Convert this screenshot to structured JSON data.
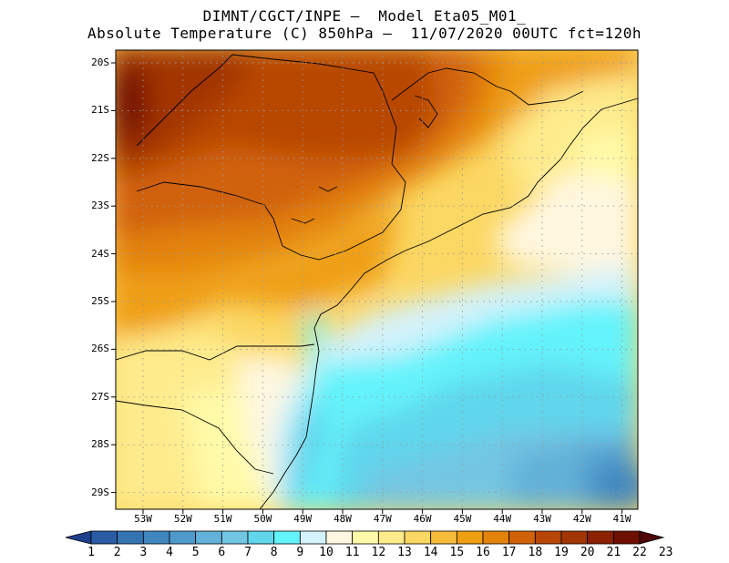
{
  "title": {
    "line1": "DIMNT/CGCT/INPE –  Model Eta05_M01_",
    "line2": "Absolute Temperature (C) 850hPa –  11/07/2020 00UTC fct=120h"
  },
  "axes": {
    "lat_labels": [
      "20S",
      "21S",
      "22S",
      "23S",
      "24S",
      "25S",
      "26S",
      "27S",
      "28S",
      "29S"
    ],
    "lon_labels": [
      "53W",
      "52W",
      "51W",
      "50W",
      "49W",
      "48W",
      "47W",
      "46W",
      "45W",
      "44W",
      "43W",
      "42W",
      "41W"
    ]
  },
  "colorbar": {
    "labels": [
      "1",
      "2",
      "3",
      "4",
      "5",
      "6",
      "7",
      "8",
      "9",
      "10",
      "11",
      "12",
      "13",
      "14",
      "15",
      "16",
      "17",
      "18",
      "19",
      "20",
      "21",
      "22",
      "23"
    ],
    "colors": [
      "#1f3f8c",
      "#2a5ca5",
      "#3573b3",
      "#4086bf",
      "#4f9acc",
      "#62b1d8",
      "#73c6e3",
      "#5fd6ec",
      "#63f3fb",
      "#d4f2fb",
      "#fff7e0",
      "#fffaa8",
      "#feeb8c",
      "#fbd763",
      "#f6bb3b",
      "#ef9f12",
      "#e3830c",
      "#d16209",
      "#b84606",
      "#a23504",
      "#8b2102",
      "#6e0f02",
      "#4e0505"
    ]
  },
  "chart_data": {
    "type": "heatmap",
    "variable": "Absolute Temperature (C) 850hPa",
    "model": "Eta05_M01_",
    "run": "11/07/2020 00UTC",
    "forecast": "fct=120h",
    "lat_range": [
      "29.5S",
      "19.5S"
    ],
    "lon_range": [
      "53.5W",
      "40.5W"
    ],
    "scale_min": 1,
    "scale_max": 23
  }
}
